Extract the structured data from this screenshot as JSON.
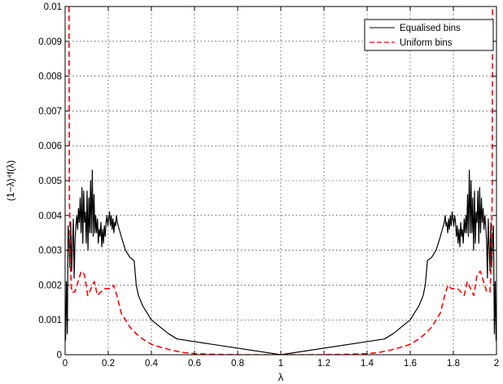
{
  "chart_data": {
    "type": "line",
    "title": "",
    "xlabel": "λ",
    "ylabel": "(1−λ)⁴f(λ)",
    "xlim": [
      0,
      2
    ],
    "ylim": [
      0,
      0.01
    ],
    "grid": true,
    "legend_position": "top-right",
    "x_ticks": [
      0,
      0.2,
      0.4,
      0.6,
      0.8,
      1,
      1.2,
      1.4,
      1.6,
      1.8,
      2
    ],
    "x_tick_labels": [
      "0",
      "0.2",
      "0.4",
      "0.6",
      "0.8",
      "1",
      "1.2",
      "1.4",
      "1.6",
      "1.8",
      "2"
    ],
    "y_ticks": [
      0,
      0.001,
      0.002,
      0.003,
      0.004,
      0.005,
      0.006,
      0.007,
      0.008,
      0.009,
      0.01
    ],
    "y_tick_labels": [
      "0",
      "0.001",
      "0.002",
      "0.003",
      "0.004",
      "0.005",
      "0.006",
      "0.007",
      "0.008",
      "0.009",
      "0.01"
    ],
    "series": [
      {
        "name": "Equalised bins",
        "color": "#000000",
        "dash": "solid",
        "x": [
          0.002,
          0.006,
          0.01,
          0.014,
          0.018,
          0.022,
          0.026,
          0.03,
          0.034,
          0.038,
          0.042,
          0.046,
          0.05,
          0.054,
          0.058,
          0.062,
          0.066,
          0.07,
          0.074,
          0.078,
          0.082,
          0.086,
          0.09,
          0.094,
          0.098,
          0.102,
          0.106,
          0.11,
          0.114,
          0.118,
          0.122,
          0.126,
          0.13,
          0.134,
          0.138,
          0.142,
          0.146,
          0.15,
          0.154,
          0.158,
          0.162,
          0.166,
          0.17,
          0.174,
          0.178,
          0.182,
          0.186,
          0.19,
          0.194,
          0.198,
          0.202,
          0.206,
          0.21,
          0.214,
          0.218,
          0.222,
          0.226,
          0.23,
          0.234,
          0.238,
          0.242,
          0.26,
          0.28,
          0.3,
          0.32,
          0.33,
          0.34,
          0.36,
          0.38,
          0.4,
          0.44,
          0.48,
          0.52,
          1.0,
          1.48,
          1.52,
          1.56,
          1.6,
          1.62,
          1.64,
          1.66,
          1.67,
          1.68,
          1.7,
          1.72,
          1.74,
          1.758,
          1.762,
          1.766,
          1.77,
          1.774,
          1.778,
          1.782,
          1.786,
          1.79,
          1.794,
          1.798,
          1.802,
          1.806,
          1.81,
          1.814,
          1.818,
          1.822,
          1.826,
          1.83,
          1.834,
          1.838,
          1.842,
          1.846,
          1.85,
          1.854,
          1.858,
          1.862,
          1.866,
          1.87,
          1.874,
          1.878,
          1.882,
          1.886,
          1.89,
          1.894,
          1.898,
          1.902,
          1.906,
          1.91,
          1.914,
          1.918,
          1.922,
          1.926,
          1.93,
          1.934,
          1.938,
          1.942,
          1.946,
          1.95,
          1.954,
          1.958,
          1.962,
          1.966,
          1.97,
          1.974,
          1.978,
          1.982,
          1.986,
          1.99,
          1.994,
          1.998
        ],
        "y": [
          0.0004,
          0.0021,
          0.0006,
          0.0037,
          0.0033,
          0.0025,
          0.0038,
          0.0024,
          0.0031,
          0.0039,
          0.0022,
          0.0033,
          0.0037,
          0.004,
          0.0036,
          0.0042,
          0.0038,
          0.0045,
          0.0035,
          0.0048,
          0.0032,
          0.0047,
          0.0038,
          0.0041,
          0.0032,
          0.0047,
          0.003,
          0.0045,
          0.0035,
          0.005,
          0.0035,
          0.0053,
          0.0034,
          0.0046,
          0.0035,
          0.004,
          0.0035,
          0.0039,
          0.0032,
          0.0036,
          0.0034,
          0.0038,
          0.0031,
          0.0036,
          0.0032,
          0.0037,
          0.0034,
          0.0038,
          0.004,
          0.0037,
          0.0039,
          0.0041,
          0.0037,
          0.004,
          0.0036,
          0.0039,
          0.0035,
          0.0038,
          0.0037,
          0.004,
          0.0038,
          0.0034,
          0.003,
          0.0028,
          0.0027,
          0.002,
          0.0017,
          0.0014,
          0.0012,
          0.001,
          0.0008,
          0.0006,
          0.00045,
          0.0,
          0.00045,
          0.0006,
          0.0008,
          0.001,
          0.0012,
          0.0014,
          0.0017,
          0.002,
          0.0027,
          0.0028,
          0.003,
          0.0034,
          0.0038,
          0.004,
          0.0037,
          0.0038,
          0.0035,
          0.0039,
          0.0036,
          0.004,
          0.0037,
          0.0041,
          0.0039,
          0.0037,
          0.004,
          0.0038,
          0.0034,
          0.0037,
          0.0032,
          0.0036,
          0.0031,
          0.0038,
          0.0034,
          0.0036,
          0.0032,
          0.0039,
          0.0035,
          0.004,
          0.0035,
          0.0046,
          0.0034,
          0.0053,
          0.0035,
          0.005,
          0.0035,
          0.0045,
          0.003,
          0.0047,
          0.0032,
          0.0041,
          0.0038,
          0.0047,
          0.0032,
          0.0048,
          0.0035,
          0.0045,
          0.0038,
          0.0042,
          0.0036,
          0.004,
          0.0037,
          0.0033,
          0.0022,
          0.0039,
          0.0031,
          0.0024,
          0.0038,
          0.0025,
          0.0033,
          0.0037,
          0.0006,
          0.0021,
          0.0004
        ]
      },
      {
        "name": "Uniform bins",
        "color": "#ff0000",
        "dash": "dashed",
        "x": [
          0.018,
          0.02,
          0.025,
          0.03,
          0.045,
          0.06,
          0.075,
          0.09,
          0.105,
          0.12,
          0.135,
          0.15,
          0.165,
          0.18,
          0.195,
          0.21,
          0.225,
          0.24,
          0.26,
          0.28,
          0.3,
          0.33,
          0.36,
          0.4,
          0.45,
          0.5,
          0.55,
          0.6,
          0.7,
          0.8,
          0.9,
          1.0,
          1.1,
          1.2,
          1.3,
          1.4,
          1.45,
          1.5,
          1.55,
          1.6,
          1.64,
          1.67,
          1.7,
          1.72,
          1.74,
          1.76,
          1.775,
          1.79,
          1.805,
          1.82,
          1.835,
          1.85,
          1.865,
          1.88,
          1.895,
          1.91,
          1.925,
          1.94,
          1.955,
          1.97,
          1.975,
          1.98,
          1.982
        ],
        "y": [
          0.01,
          0.0045,
          0.0025,
          0.0018,
          0.0018,
          0.0021,
          0.0024,
          0.0023,
          0.0017,
          0.0019,
          0.0021,
          0.0017,
          0.0018,
          0.0019,
          0.0019,
          0.0019,
          0.002,
          0.0017,
          0.0012,
          0.001,
          0.0008,
          0.0006,
          0.00045,
          0.0003,
          0.0002,
          0.00012,
          6e-05,
          3e-05,
          1e-05,
          0.0,
          0.0,
          0.0,
          0.0,
          0.0,
          1e-05,
          3e-05,
          6e-05,
          0.00012,
          0.0002,
          0.0003,
          0.00045,
          0.0006,
          0.0008,
          0.001,
          0.0012,
          0.0017,
          0.002,
          0.0019,
          0.0019,
          0.0019,
          0.0018,
          0.0017,
          0.0021,
          0.0019,
          0.0017,
          0.0023,
          0.0024,
          0.0021,
          0.0018,
          0.0018,
          0.0025,
          0.0045,
          0.01
        ]
      }
    ]
  }
}
